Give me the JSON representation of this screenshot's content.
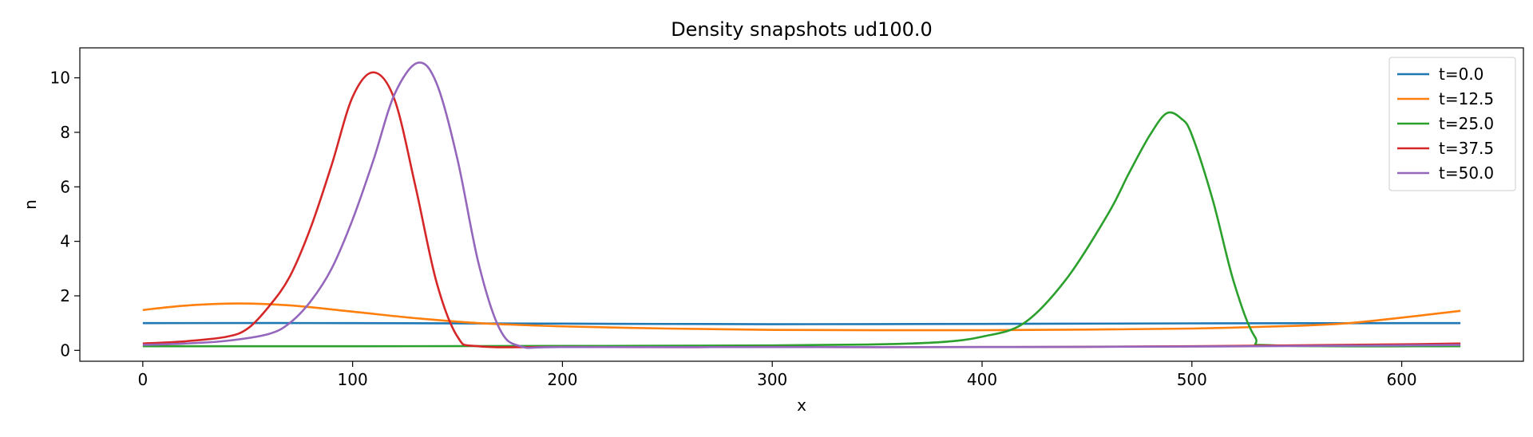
{
  "chart_data": {
    "type": "line",
    "title": "Density snapshots  ud100.0",
    "xlabel": "x",
    "ylabel": "n",
    "xlim": [
      -30,
      658
    ],
    "ylim": [
      -0.4,
      11.1
    ],
    "xticks": [
      0,
      100,
      200,
      300,
      400,
      500,
      600
    ],
    "yticks": [
      0,
      2,
      4,
      6,
      8,
      10
    ],
    "grid": false,
    "legend_position": "top-right",
    "series": [
      {
        "name": "t=0.0",
        "color": "#1f77b4",
        "x": [
          0,
          100,
          200,
          300,
          400,
          500,
          628
        ],
        "y": [
          1.0,
          1.0,
          0.98,
          0.96,
          0.97,
          0.99,
          1.0
        ]
      },
      {
        "name": "t=12.5",
        "color": "#ff7f0e",
        "x": [
          0,
          20,
          45,
          70,
          100,
          130,
          160,
          200,
          250,
          300,
          350,
          400,
          450,
          500,
          550,
          575,
          600,
          628
        ],
        "y": [
          1.48,
          1.64,
          1.72,
          1.65,
          1.42,
          1.18,
          1.0,
          0.88,
          0.8,
          0.75,
          0.74,
          0.74,
          0.76,
          0.8,
          0.9,
          1.0,
          1.2,
          1.45
        ]
      },
      {
        "name": "t=25.0",
        "color": "#2ca02c",
        "x": [
          0,
          100,
          200,
          300,
          350,
          380,
          400,
          420,
          440,
          460,
          470,
          480,
          488,
          495,
          500,
          510,
          520,
          530,
          540,
          628
        ],
        "y": [
          0.15,
          0.15,
          0.16,
          0.18,
          0.22,
          0.3,
          0.5,
          1.0,
          2.6,
          5.0,
          6.5,
          7.9,
          8.7,
          8.5,
          7.9,
          5.5,
          2.5,
          0.5,
          0.18,
          0.15
        ]
      },
      {
        "name": "t=37.5",
        "color": "#d62728",
        "x": [
          0,
          20,
          40,
          50,
          60,
          70,
          80,
          90,
          100,
          110,
          120,
          130,
          140,
          150,
          160,
          200,
          300,
          400,
          500,
          600,
          628
        ],
        "y": [
          0.25,
          0.33,
          0.5,
          0.8,
          1.6,
          2.7,
          4.5,
          6.8,
          9.3,
          10.2,
          9.2,
          6.0,
          2.5,
          0.5,
          0.15,
          0.12,
          0.12,
          0.12,
          0.15,
          0.22,
          0.25
        ]
      },
      {
        "name": "t=50.0",
        "color": "#9467bd",
        "x": [
          0,
          20,
          40,
          60,
          70,
          80,
          90,
          100,
          110,
          120,
          131,
          140,
          150,
          160,
          170,
          180,
          200,
          300,
          400,
          500,
          600,
          628
        ],
        "y": [
          0.2,
          0.25,
          0.35,
          0.6,
          1.0,
          1.8,
          3.0,
          4.8,
          7.0,
          9.4,
          10.55,
          9.8,
          7.0,
          3.2,
          0.8,
          0.15,
          0.12,
          0.12,
          0.12,
          0.14,
          0.18,
          0.2
        ]
      }
    ]
  }
}
